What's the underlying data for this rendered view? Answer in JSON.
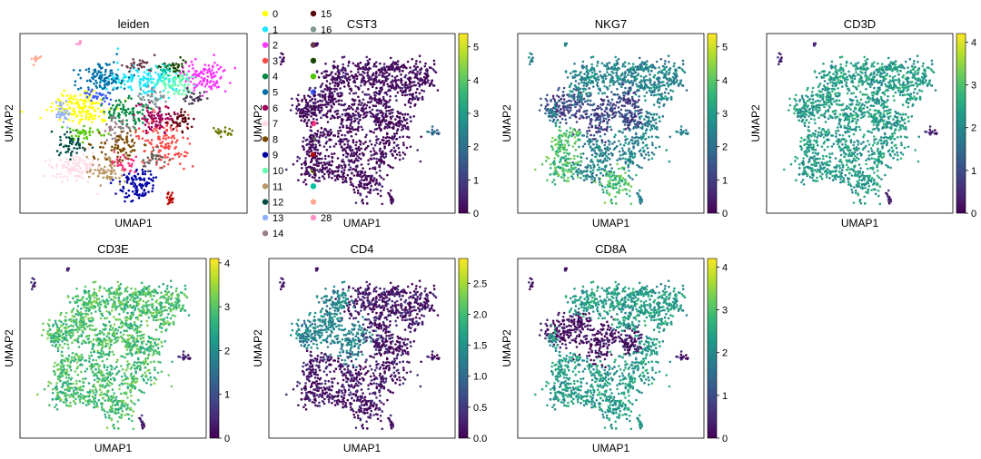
{
  "chart_data": [
    {
      "type": "scatter",
      "title": "leiden",
      "xlabel": "UMAP1",
      "ylabel": "UMAP2",
      "color_kind": "categorical",
      "legend": {
        "placement": "right",
        "entries": [
          {
            "label": "0",
            "color": "#ffff00"
          },
          {
            "label": "1",
            "color": "#1ce6ff"
          },
          {
            "label": "2",
            "color": "#ff34ff"
          },
          {
            "label": "3",
            "color": "#ff4a46"
          },
          {
            "label": "4",
            "color": "#008941"
          },
          {
            "label": "5",
            "color": "#006fa6"
          },
          {
            "label": "6",
            "color": "#a30059"
          },
          {
            "label": "7",
            "color": "#ffdbe5"
          },
          {
            "label": "8",
            "color": "#7a4900"
          },
          {
            "label": "9",
            "color": "#0000a6"
          },
          {
            "label": "10",
            "color": "#63ffac"
          },
          {
            "label": "11",
            "color": "#b79762"
          },
          {
            "label": "12",
            "color": "#004d43"
          },
          {
            "label": "13",
            "color": "#8fb0ff"
          },
          {
            "label": "14",
            "color": "#997d87"
          },
          {
            "label": "15",
            "color": "#5a0007"
          },
          {
            "label": "16",
            "color": "#809693"
          },
          {
            "label": "",
            "color": "#6a3a4c"
          },
          {
            "label": "",
            "color": "#1b4400"
          },
          {
            "label": "",
            "color": "#4fc601"
          },
          {
            "label": "",
            "color": "#3b5dff"
          },
          {
            "label": "",
            "color": "#4a3b53"
          },
          {
            "label": "",
            "color": "#ff2f80"
          },
          {
            "label": "",
            "color": "#61615a"
          },
          {
            "label": "",
            "color": "#ba0900"
          },
          {
            "label": "",
            "color": "#6b7900"
          },
          {
            "label": "",
            "color": "#00c2a0"
          },
          {
            "label": "",
            "color": "#ffaa92"
          },
          {
            "label": "28",
            "color": "#ff90c9"
          }
        ]
      }
    },
    {
      "type": "scatter",
      "title": "CST3",
      "xlabel": "UMAP1",
      "ylabel": "UMAP2",
      "color_kind": "continuous",
      "colorbar": {
        "min": 0,
        "max": 5.4,
        "ticks": [
          "0",
          "1",
          "2",
          "3",
          "4",
          "5"
        ]
      }
    },
    {
      "type": "scatter",
      "title": "NKG7",
      "xlabel": "UMAP1",
      "ylabel": "UMAP2",
      "color_kind": "continuous",
      "colorbar": {
        "min": 0,
        "max": 5.4,
        "ticks": [
          "0",
          "1",
          "2",
          "3",
          "4",
          "5"
        ]
      }
    },
    {
      "type": "scatter",
      "title": "CD3D",
      "xlabel": "UMAP1",
      "ylabel": "UMAP2",
      "color_kind": "continuous",
      "colorbar": {
        "min": 0,
        "max": 4.2,
        "ticks": [
          "0",
          "1",
          "2",
          "3",
          "4"
        ]
      }
    },
    {
      "type": "scatter",
      "title": "CD3E",
      "xlabel": "UMAP1",
      "ylabel": "UMAP2",
      "color_kind": "continuous",
      "colorbar": {
        "min": 0,
        "max": 4.1,
        "ticks": [
          "0",
          "1",
          "2",
          "3",
          "4"
        ]
      }
    },
    {
      "type": "scatter",
      "title": "CD4",
      "xlabel": "UMAP1",
      "ylabel": "UMAP2",
      "color_kind": "continuous",
      "colorbar": {
        "min": 0,
        "max": 2.9,
        "ticks": [
          "0.0",
          "0.5",
          "1.0",
          "1.5",
          "2.0",
          "2.5"
        ]
      }
    },
    {
      "type": "scatter",
      "title": "CD8A",
      "xlabel": "UMAP1",
      "ylabel": "UMAP2",
      "color_kind": "continuous",
      "colorbar": {
        "min": 0,
        "max": 4.2,
        "ticks": [
          "0",
          "1",
          "2",
          "3",
          "4"
        ]
      }
    }
  ],
  "colormap": {
    "name": "viridis",
    "stops": [
      "#440154",
      "#482878",
      "#3e4989",
      "#31688e",
      "#26828e",
      "#1f9e89",
      "#35b779",
      "#6ece58",
      "#b5de2b",
      "#fde725"
    ]
  }
}
